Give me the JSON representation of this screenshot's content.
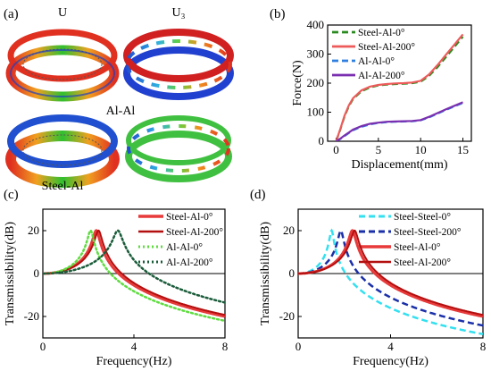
{
  "panel_a": {
    "label": "(a)",
    "col_labels": [
      "U",
      "U₃"
    ],
    "row_labels": [
      "Al-Al",
      "Steel-Al"
    ]
  },
  "panel_b": {
    "label": "(b)"
  },
  "panel_c": {
    "label": "(c)"
  },
  "panel_d": {
    "label": "(d)"
  },
  "colors": {
    "steel_al_0": "#e83a3a",
    "steel_al_200": "#b30f0f",
    "al_al_0": "#5fdc40",
    "al_al_200": "#1a5c3a",
    "b_steel_0": "#2a8a20",
    "b_steel_200": "#ee5a5a",
    "b_al_0": "#2f7fe0",
    "b_al_200": "#7a2fb0",
    "steel_steel_0": "#33e0f0",
    "steel_steel_200": "#1a2fa8"
  },
  "chart_data": [
    {
      "type": "line",
      "panel": "(b)",
      "xlabel": "Displacement(mm)",
      "ylabel": "Force(N)",
      "xlim": [
        -1,
        16
      ],
      "ylim": [
        0,
        400
      ],
      "xticks": [
        0,
        5,
        10,
        15
      ],
      "yticks": [
        0,
        100,
        200,
        300,
        400
      ],
      "legend": "top-left",
      "series": [
        {
          "name": "Steel-Al-0°",
          "style": "dashed",
          "color": "b_steel_0",
          "x": [
            0,
            0.5,
            1,
            1.5,
            2,
            3,
            4,
            5,
            6,
            7,
            8,
            9,
            10,
            11,
            12,
            13,
            14,
            15
          ],
          "y": [
            0,
            40,
            85,
            120,
            145,
            172,
            185,
            192,
            195,
            197,
            198,
            200,
            205,
            225,
            255,
            290,
            325,
            360
          ]
        },
        {
          "name": "Steel-Al-200°",
          "style": "solid",
          "color": "b_steel_200",
          "x": [
            0,
            0.5,
            1,
            1.5,
            2,
            3,
            4,
            5,
            6,
            7,
            8,
            9,
            10,
            11,
            12,
            13,
            14,
            15
          ],
          "y": [
            0,
            42,
            88,
            123,
            148,
            175,
            188,
            194,
            197,
            199,
            200,
            202,
            208,
            230,
            262,
            298,
            333,
            368
          ]
        },
        {
          "name": "Al-Al-0°",
          "style": "dashed",
          "color": "b_al_0",
          "x": [
            0,
            0.5,
            1,
            1.5,
            2,
            3,
            4,
            5,
            6,
            7,
            8,
            9,
            10,
            11,
            12,
            13,
            14,
            15
          ],
          "y": [
            0,
            8,
            18,
            28,
            38,
            50,
            58,
            63,
            66,
            67,
            68,
            69,
            72,
            82,
            95,
            108,
            120,
            132
          ]
        },
        {
          "name": "Al-Al-200°",
          "style": "solid",
          "color": "b_al_200",
          "x": [
            0,
            0.5,
            1,
            1.5,
            2,
            3,
            4,
            5,
            6,
            7,
            8,
            9,
            10,
            11,
            12,
            13,
            14,
            15
          ],
          "y": [
            0,
            9,
            20,
            30,
            40,
            52,
            60,
            64,
            67,
            68,
            69,
            70,
            73,
            84,
            97,
            110,
            122,
            134
          ]
        }
      ]
    },
    {
      "type": "line",
      "panel": "(c)",
      "xlabel": "Frequency(Hz)",
      "ylabel": "Transmissibility(dB)",
      "xlim": [
        0,
        8
      ],
      "ylim": [
        -30,
        30
      ],
      "xticks": [
        0,
        4,
        8
      ],
      "yticks": [
        -20,
        0,
        20
      ],
      "legend": "top-right",
      "model": {
        "form": "sdof",
        "zeta": 0.05
      },
      "series": [
        {
          "name": "Steel-Al-0°",
          "style": "solid",
          "color": "steel_al_0",
          "fn": 2.35,
          "width": 3
        },
        {
          "name": "Steel-Al-200°",
          "style": "solid",
          "color": "steel_al_200",
          "fn": 2.45,
          "width": 2
        },
        {
          "name": "Al-Al-0°",
          "style": "dotted",
          "color": "al_al_0",
          "fn": 2.1,
          "width": 2.5
        },
        {
          "name": "Al-Al-200°",
          "style": "dotted",
          "color": "al_al_200",
          "fn": 3.3,
          "width": 2.5
        }
      ]
    },
    {
      "type": "line",
      "panel": "(d)",
      "xlabel": "Frequency(Hz)",
      "ylabel": "Transmissibility(dB)",
      "xlim": [
        0,
        8
      ],
      "ylim": [
        -30,
        30
      ],
      "xticks": [
        0,
        4,
        8
      ],
      "yticks": [
        -20,
        0,
        20
      ],
      "legend": "top-right",
      "model": {
        "form": "sdof",
        "zeta": 0.05
      },
      "series": [
        {
          "name": "Steel-Steel-0°",
          "style": "dashed",
          "color": "steel_steel_0",
          "fn": 1.45,
          "width": 2.5
        },
        {
          "name": "Steel-Steel-200°",
          "style": "dashed",
          "color": "steel_steel_200",
          "fn": 1.85,
          "width": 2.5
        },
        {
          "name": "Steel-Al-0°",
          "style": "solid",
          "color": "steel_al_0",
          "fn": 2.35,
          "width": 3
        },
        {
          "name": "Steel-Al-200°",
          "style": "solid",
          "color": "steel_al_200",
          "fn": 2.45,
          "width": 2
        }
      ]
    }
  ]
}
